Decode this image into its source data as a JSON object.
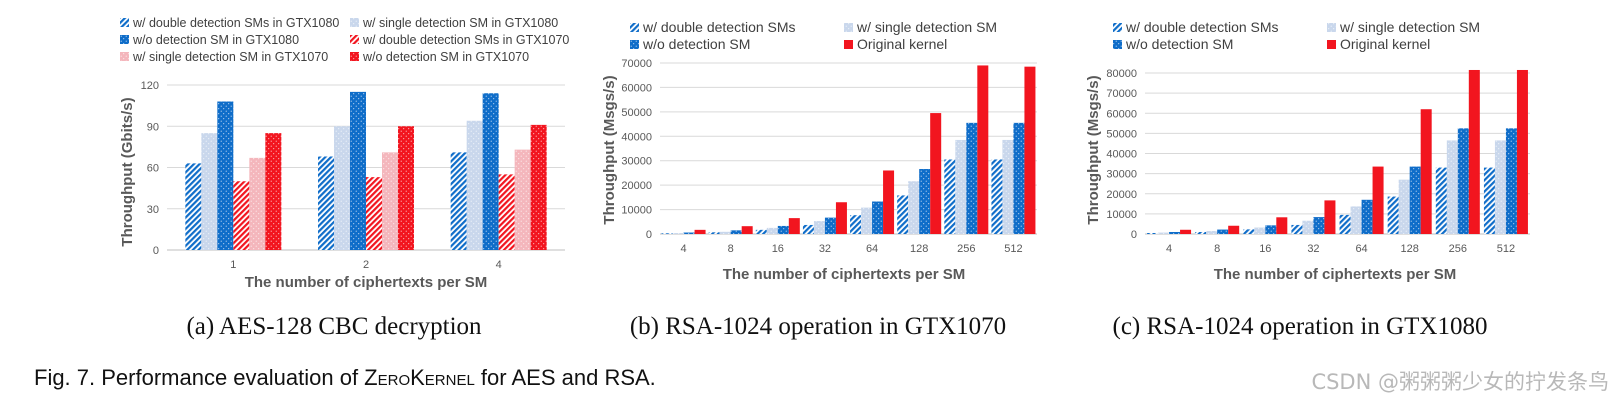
{
  "figure": {
    "caption_prefix": "Fig. 7. Performance evaluation of ",
    "caption_name": "ZeroKernel",
    "caption_suffix": " for AES and RSA.",
    "watermark": "CSDN @粥粥粥少女的拧发条鸟"
  },
  "colors": {
    "dark_blue": "#0F6DC9",
    "light_blue": "#C9D7EC",
    "red": "#F2151F",
    "pink": "#F4B6BC",
    "grid": "#d9d9d9",
    "axis_text": "#595959"
  },
  "chart_data": [
    {
      "id": "aes",
      "type": "bar",
      "subcaption": "(a) AES-128 CBC decryption",
      "xlabel": "The number of ciphertexts per SM",
      "ylabel": "Throughput (Gbits/s)",
      "categories": [
        "1",
        "2",
        "4"
      ],
      "ylim": [
        0,
        120
      ],
      "yticks": [
        "0",
        "30",
        "60",
        "90",
        "120"
      ],
      "ytick_values": [
        0,
        30,
        60,
        90,
        120
      ],
      "legend_columns": 2,
      "series": [
        {
          "name": "w/ double detection SMs in GTX1080",
          "color": "#0F6DC9",
          "pattern": "hatch",
          "values": [
            63,
            68,
            71
          ]
        },
        {
          "name": "w/ single detection SM in GTX1080",
          "color": "#C9D7EC",
          "pattern": "dots",
          "values": [
            85,
            90,
            94
          ]
        },
        {
          "name": "w/o detection SM in GTX1080",
          "color": "#0F6DC9",
          "pattern": "dots",
          "values": [
            108,
            115,
            114
          ]
        },
        {
          "name": "w/ double detection SMs in GTX1070",
          "color": "#F2151F",
          "pattern": "hatch",
          "values": [
            50,
            53,
            55
          ]
        },
        {
          "name": "w/ single detection SM in GTX1070",
          "color": "#F4B6BC",
          "pattern": "dots",
          "values": [
            67,
            71,
            73
          ]
        },
        {
          "name": "w/o detection SM in GTX1070",
          "color": "#F2151F",
          "pattern": "dots",
          "values": [
            85,
            90,
            91
          ]
        }
      ]
    },
    {
      "id": "rsa1070",
      "type": "bar",
      "subcaption": "(b) RSA-1024 operation in GTX1070",
      "xlabel": "The number of ciphertexts per SM",
      "ylabel": "Throughput (Msgs/s)",
      "categories": [
        "4",
        "8",
        "16",
        "32",
        "64",
        "128",
        "256",
        "512"
      ],
      "ylim": [
        0,
        70000
      ],
      "yticks": [
        "0",
        "10000",
        "20000",
        "30000",
        "40000",
        "50000",
        "60000",
        "70000"
      ],
      "ytick_values": [
        0,
        10000,
        20000,
        30000,
        40000,
        50000,
        60000,
        70000
      ],
      "legend_columns": 2,
      "series": [
        {
          "name": "w/ double detection SMs",
          "color": "#0F6DC9",
          "pattern": "hatch",
          "values": [
            300,
            700,
            1700,
            3700,
            7700,
            15800,
            30500,
            30500
          ]
        },
        {
          "name": "w/ single detection SM",
          "color": "#C9D7EC",
          "pattern": "dots",
          "values": [
            400,
            900,
            2500,
            5300,
            10800,
            21600,
            38500,
            38500
          ]
        },
        {
          "name": "w/o detection SM",
          "color": "#0F6DC9",
          "pattern": "dots",
          "values": [
            600,
            1500,
            3300,
            6700,
            13300,
            26600,
            45500,
            45500
          ]
        },
        {
          "name": "Original kernel",
          "color": "#F2151F",
          "pattern": "solid",
          "values": [
            1700,
            3200,
            6500,
            13000,
            26000,
            49500,
            69000,
            68500
          ]
        }
      ]
    },
    {
      "id": "rsa1080",
      "type": "bar",
      "subcaption": "(c) RSA-1024 operation in GTX1080",
      "xlabel": "The number of ciphertexts per SM",
      "ylabel": "Throughput (Msgs/s)",
      "categories": [
        "4",
        "8",
        "16",
        "32",
        "64",
        "128",
        "256",
        "512"
      ],
      "ylim": [
        0,
        80000
      ],
      "yticks": [
        "0",
        "10000",
        "20000",
        "30000",
        "40000",
        "50000",
        "60000",
        "70000",
        "80000"
      ],
      "ytick_values": [
        0,
        10000,
        20000,
        30000,
        40000,
        50000,
        60000,
        70000,
        80000
      ],
      "legend_columns": 2,
      "series": [
        {
          "name": "w/ double detection SMs",
          "color": "#0F6DC9",
          "pattern": "hatch",
          "values": [
            500,
            1000,
            2300,
            4500,
            9500,
            18600,
            33000,
            33000
          ]
        },
        {
          "name": "w/ single detection SM",
          "color": "#C9D7EC",
          "pattern": "dots",
          "values": [
            700,
            1500,
            3200,
            6600,
            13700,
            27000,
            46500,
            46500
          ]
        },
        {
          "name": "w/o detection SM",
          "color": "#0F6DC9",
          "pattern": "dots",
          "values": [
            1000,
            2200,
            4300,
            8400,
            17000,
            33500,
            52500,
            52500
          ]
        },
        {
          "name": "Original kernel",
          "color": "#F2151F",
          "pattern": "solid",
          "values": [
            2100,
            4100,
            8300,
            16700,
            33500,
            62000,
            81500,
            81500
          ]
        }
      ]
    }
  ]
}
